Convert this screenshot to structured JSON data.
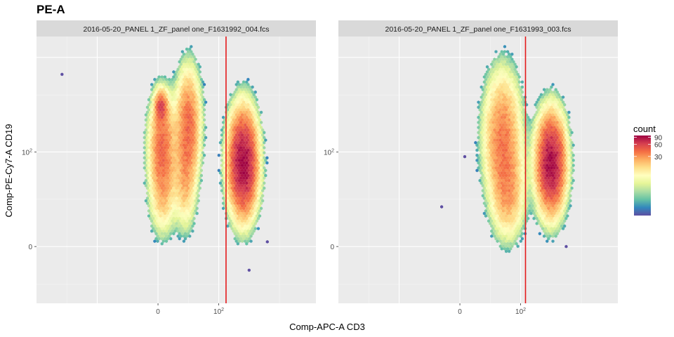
{
  "chart_data": {
    "type": "heatmap",
    "subtype": "hexbin",
    "title": "PE-A",
    "xlabel": "Comp-APC-A CD3",
    "ylabel": "Comp-PE-Cy7-A CD19",
    "x_ticks": [
      {
        "value": 0,
        "label": "0"
      },
      {
        "value": 100,
        "label": "10",
        "sup": "2"
      }
    ],
    "y_ticks": [
      {
        "value": 0,
        "label": "0"
      },
      {
        "value": 100,
        "label": "10",
        "sup": "2"
      }
    ],
    "xlim": [
      -200,
      260
    ],
    "ylim": [
      -60,
      222
    ],
    "gate_line_color": "#e41a1c",
    "panels": [
      {
        "strip": "2016-05-20_PANEL 1_ZF_panel one_F1631992_004.fcs",
        "gate_x": 112,
        "populations": [
          {
            "cx": 5,
            "cy": 148,
            "sx": 6,
            "sy": 10,
            "peak": 45
          },
          {
            "cx": 7,
            "cy": 110,
            "sx": 13,
            "sy": 30,
            "peak": 38
          },
          {
            "cx": 8,
            "cy": 60,
            "sx": 13,
            "sy": 28,
            "peak": 20
          },
          {
            "cx": 50,
            "cy": 130,
            "sx": 12,
            "sy": 34,
            "peak": 40
          },
          {
            "cx": 45,
            "cy": 70,
            "sx": 11,
            "sy": 30,
            "peak": 20
          },
          {
            "cx": 140,
            "cy": 88,
            "sx": 14,
            "sy": 32,
            "peak": 100
          }
        ],
        "outliers": [
          [
            -158,
            182
          ],
          [
            150,
            -25
          ],
          [
            180,
            5
          ]
        ]
      },
      {
        "strip": "2016-05-20_PANEL 1_ZF_panel one_F1631993_003.fcs",
        "gate_x": 108,
        "populations": [
          {
            "cx": 70,
            "cy": 115,
            "sx": 18,
            "sy": 40,
            "peak": 36
          },
          {
            "cx": 80,
            "cy": 55,
            "sx": 16,
            "sy": 28,
            "peak": 22
          },
          {
            "cx": 150,
            "cy": 88,
            "sx": 14,
            "sy": 30,
            "peak": 95
          }
        ],
        "outliers": [
          [
            -30,
            42
          ],
          [
            8,
            95
          ],
          [
            175,
            0
          ]
        ]
      }
    ],
    "legend": {
      "title": "count",
      "position": "right",
      "breaks": [
        30,
        60,
        90
      ],
      "range": [
        1,
        100
      ],
      "colors": [
        "#9e0142",
        "#d53e4f",
        "#f46d43",
        "#fdae61",
        "#fee08b",
        "#ffffbf",
        "#e6f598",
        "#abdda4",
        "#66c2a5",
        "#3288bd",
        "#5e4fa2"
      ]
    },
    "grid": true,
    "panel_background": "#ebebeb",
    "strip_background": "#d9d9d9"
  }
}
